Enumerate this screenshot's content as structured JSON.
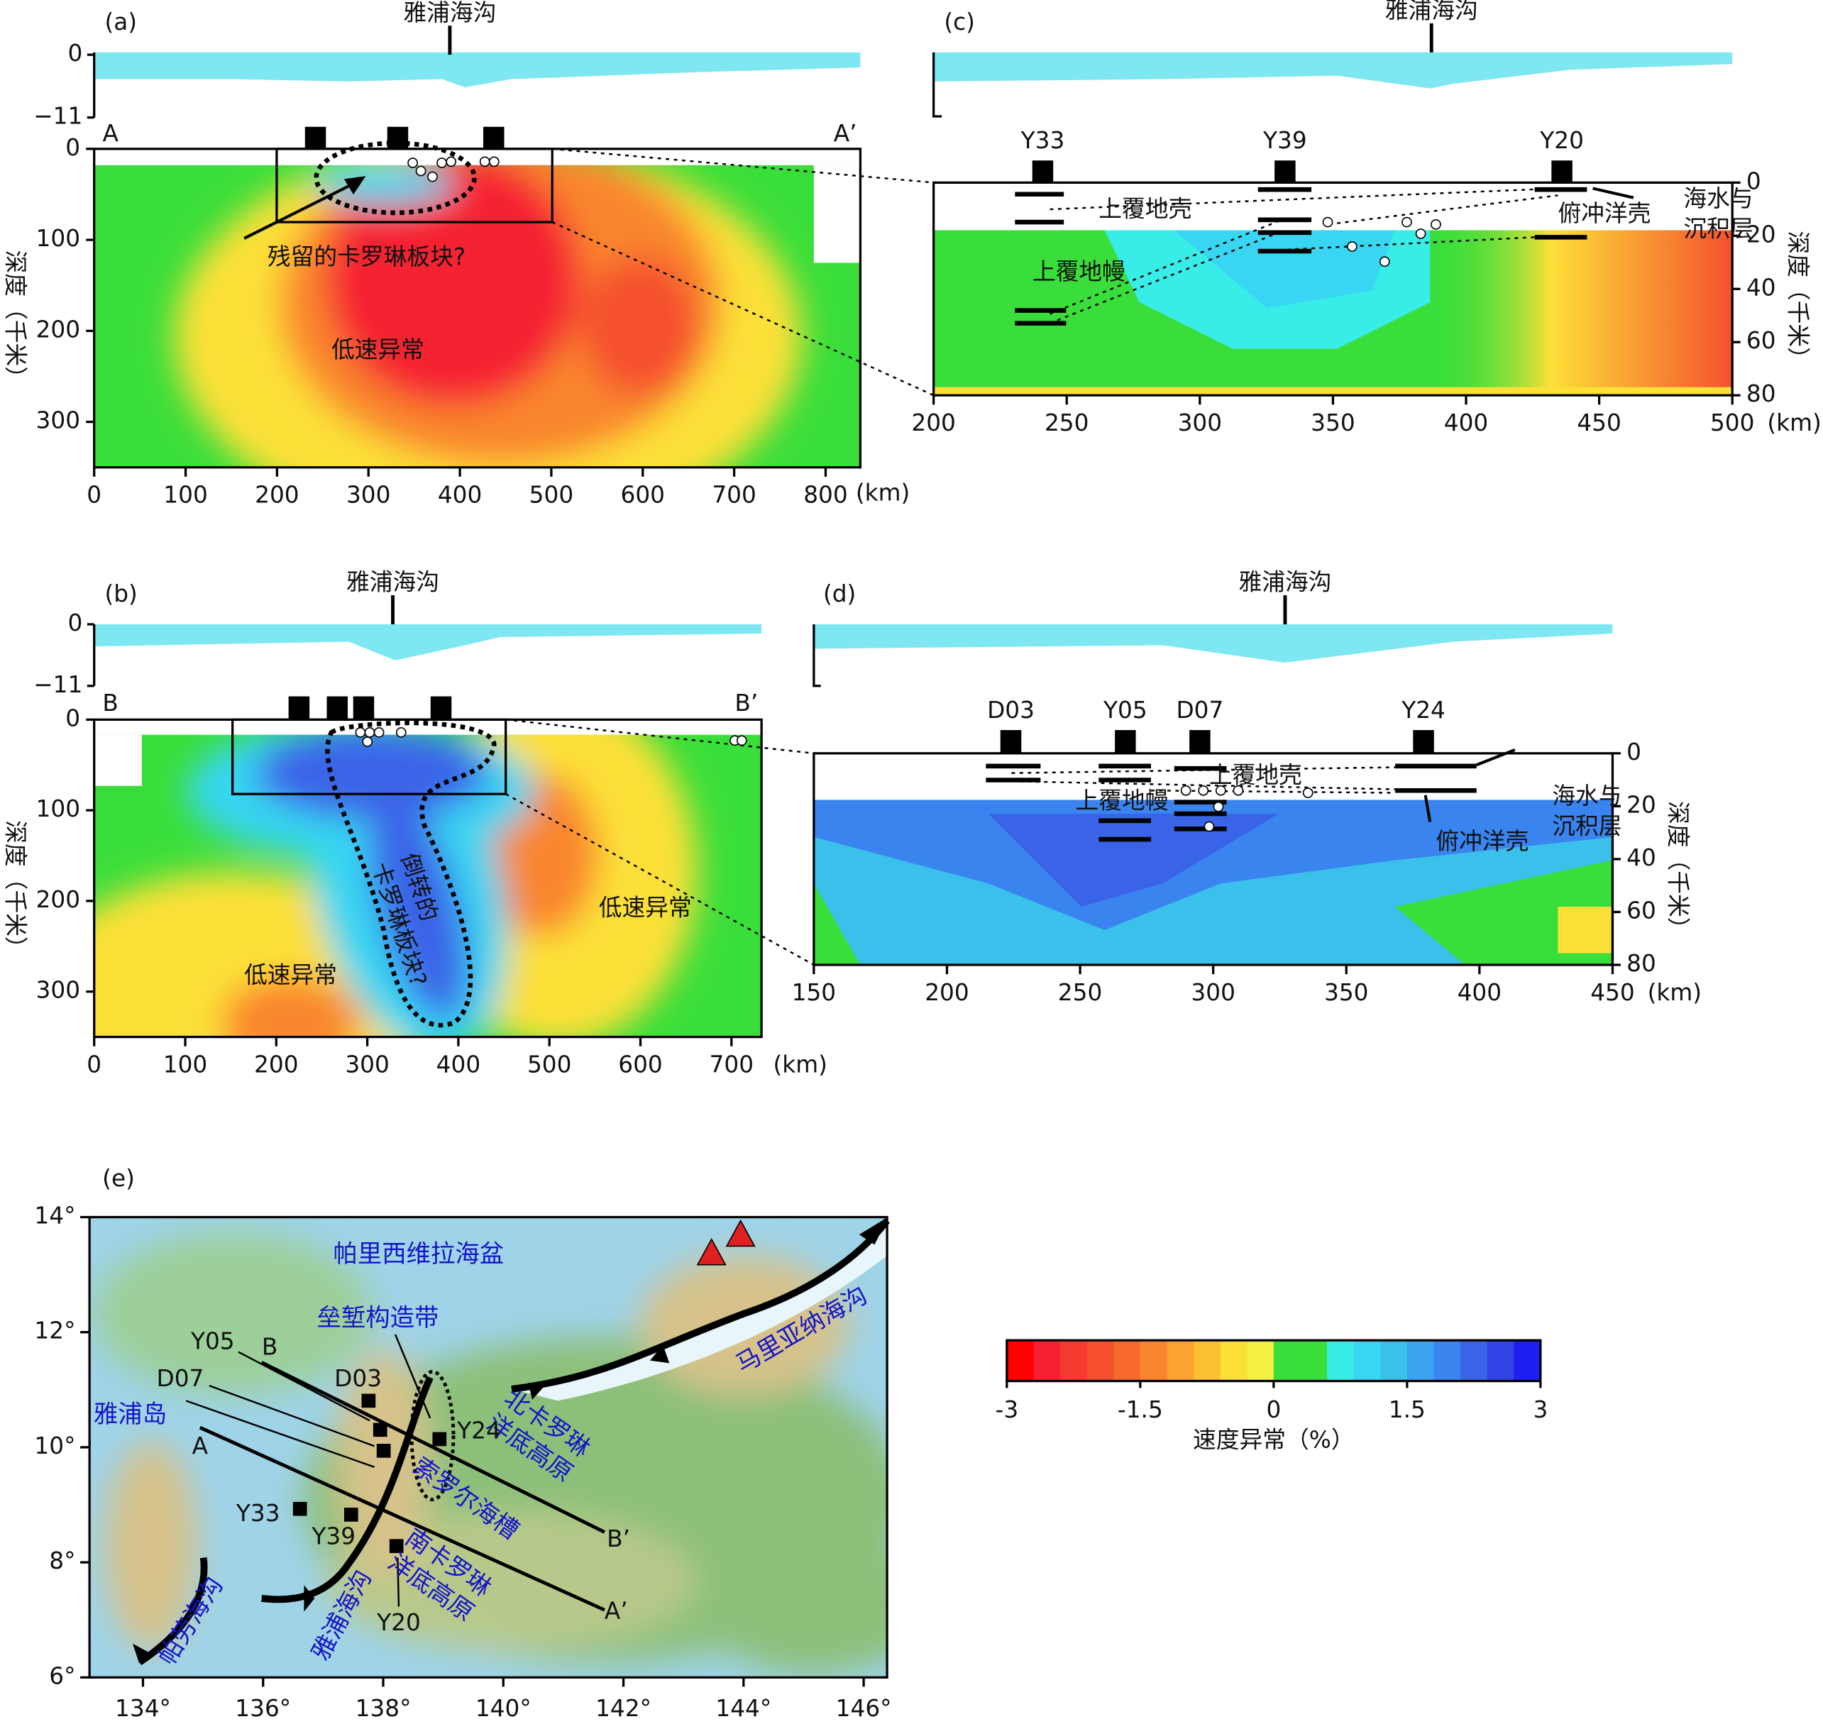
{
  "panel_a": {
    "label": "(a)",
    "trench": "雅浦海沟",
    "trench_km": 389,
    "start": "A",
    "end": "A’",
    "bathy_ylim": [
      -11,
      0
    ],
    "bathy_yticks": [
      {
        "value": -11,
        "label": "−11"
      },
      0
    ],
    "xlim": [
      0,
      838
    ],
    "xticks": [
      0,
      100,
      200,
      300,
      400,
      500,
      600,
      700,
      800
    ],
    "x_unit": "(km)",
    "ylim": [
      0,
      350
    ],
    "yticks": [
      0,
      100,
      200,
      300
    ],
    "y_label": "深度（千米）",
    "stations_km": [
      242,
      332,
      437
    ],
    "annotations": [
      "残留的卡罗琳板块?",
      "低速异常"
    ]
  },
  "panel_b": {
    "label": "(b)",
    "trench": "雅浦海沟",
    "trench_km": 328,
    "start": "B",
    "end": "B’",
    "bathy_ylim": [
      -11,
      0
    ],
    "bathy_yticks": [
      {
        "value": -11,
        "label": "−11"
      },
      0
    ],
    "xlim": [
      0,
      733
    ],
    "xticks": [
      0,
      100,
      200,
      300,
      400,
      500,
      600,
      700
    ],
    "x_unit": "(km)",
    "ylim": [
      0,
      350
    ],
    "yticks": [
      0,
      100,
      200,
      300
    ],
    "y_label": "深度（千米）",
    "stations_km": [
      225,
      267,
      296,
      381
    ],
    "annotations": [
      [
        "倒转的",
        "卡罗琳板块?"
      ],
      "低速异常",
      "低速异常"
    ]
  },
  "panel_c": {
    "label": "(c)",
    "trench": "雅浦海沟",
    "trench_km": 387,
    "xlim": [
      200,
      500
    ],
    "xticks": [
      200,
      250,
      300,
      350,
      400,
      450,
      500
    ],
    "x_unit": "(km)",
    "ylim": [
      0,
      80
    ],
    "yticks": [
      0,
      20,
      40,
      60,
      80
    ],
    "y_label": "深度（千米）",
    "stations": [
      {
        "name": "Y33",
        "km": 241
      },
      {
        "name": "Y39",
        "km": 332
      },
      {
        "name": "Y20",
        "km": 436
      }
    ],
    "annotations": [
      "上覆地壳",
      "俯冲洋壳",
      [
        "海水与",
        "沉积层"
      ],
      "上覆地幔"
    ]
  },
  "panel_d": {
    "label": "(d)",
    "trench": "雅浦海沟",
    "trench_km": 327,
    "xlim": [
      150,
      450
    ],
    "xticks": [
      150,
      200,
      250,
      300,
      350,
      400,
      450
    ],
    "x_unit": "(km)",
    "ylim": [
      0,
      80
    ],
    "yticks": [
      0,
      20,
      40,
      60,
      80
    ],
    "y_label": "深度（千米）",
    "stations": [
      {
        "name": "D03",
        "km": 224
      },
      {
        "name": "Y05",
        "km": 267
      },
      {
        "name": "D07",
        "km": 295
      },
      {
        "name": "Y24",
        "km": 379
      }
    ],
    "annotations": [
      "上覆地壳",
      "上覆地幔",
      "俯冲洋壳",
      [
        "海水与",
        "沉积层"
      ]
    ]
  },
  "map": {
    "label": "(e)",
    "xlim": [
      133.11,
      146.39
    ],
    "ylim": [
      6,
      14
    ],
    "xticks": [
      {
        "value": 134,
        "label": "134°"
      },
      {
        "value": 136,
        "label": "136°"
      },
      {
        "value": 138,
        "label": "138°"
      },
      {
        "value": 140,
        "label": "140°"
      },
      {
        "value": 142,
        "label": "142°"
      },
      {
        "value": 144,
        "label": "144°"
      },
      {
        "value": 146,
        "label": "146°"
      }
    ],
    "yticks": [
      {
        "value": 6,
        "label": "6°"
      },
      {
        "value": 8,
        "label": "8°"
      },
      {
        "value": 10,
        "label": "10°"
      },
      {
        "value": 12,
        "label": "12°"
      },
      {
        "value": 14,
        "label": "14°"
      }
    ],
    "places": [
      "帕里西维拉海盆",
      "垒堑构造带",
      "雅浦岛",
      [
        "北卡罗琳",
        "洋底高原"
      ],
      "索罗尔海槽",
      [
        "南卡罗琳",
        "洋底高原"
      ],
      "马里亚纳海沟",
      "雅浦海沟",
      "帕劳海沟"
    ],
    "profile_ends": [
      "A",
      "A’",
      "B",
      "B’"
    ],
    "stations": [
      "Y05",
      "D07",
      "D03",
      "Y24",
      "Y33",
      "Y39",
      "Y20"
    ]
  },
  "colorbar": {
    "lim": [
      -3,
      3
    ],
    "ticks": [
      -3,
      -1.5,
      0,
      1.5,
      3
    ],
    "label": "速度异常（%）",
    "colors": [
      "#ff0000",
      "#f52030",
      "#f53a30",
      "#f5502e",
      "#f7682c",
      "#f9862e",
      "#fba230",
      "#fcc033",
      "#fce038",
      "#f2f040",
      "#3ade3a",
      "#3ade3a",
      "#38ece8",
      "#38d6f2",
      "#3ac0ea",
      "#3aa2f0",
      "#3a84f0",
      "#3a64e8",
      "#3044e8",
      "#1e1ef0"
    ]
  }
}
